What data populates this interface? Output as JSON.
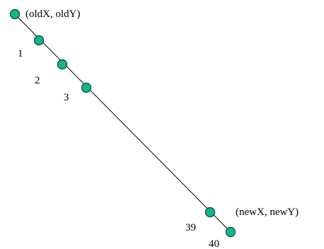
{
  "diagram": {
    "colors": {
      "node_fill": "#17b38a",
      "node_stroke": "#0b5a45",
      "line": "#000000",
      "text": "#000000"
    },
    "nodes": [
      {
        "id": "start",
        "label": "(oldX, oldY)"
      },
      {
        "id": "step-1",
        "label": "1"
      },
      {
        "id": "step-2",
        "label": "2"
      },
      {
        "id": "step-3",
        "label": "3"
      },
      {
        "id": "step-39",
        "label": "39"
      },
      {
        "id": "end",
        "label": "(newX, newY)"
      },
      {
        "id": "step-40",
        "label": "40"
      }
    ]
  }
}
